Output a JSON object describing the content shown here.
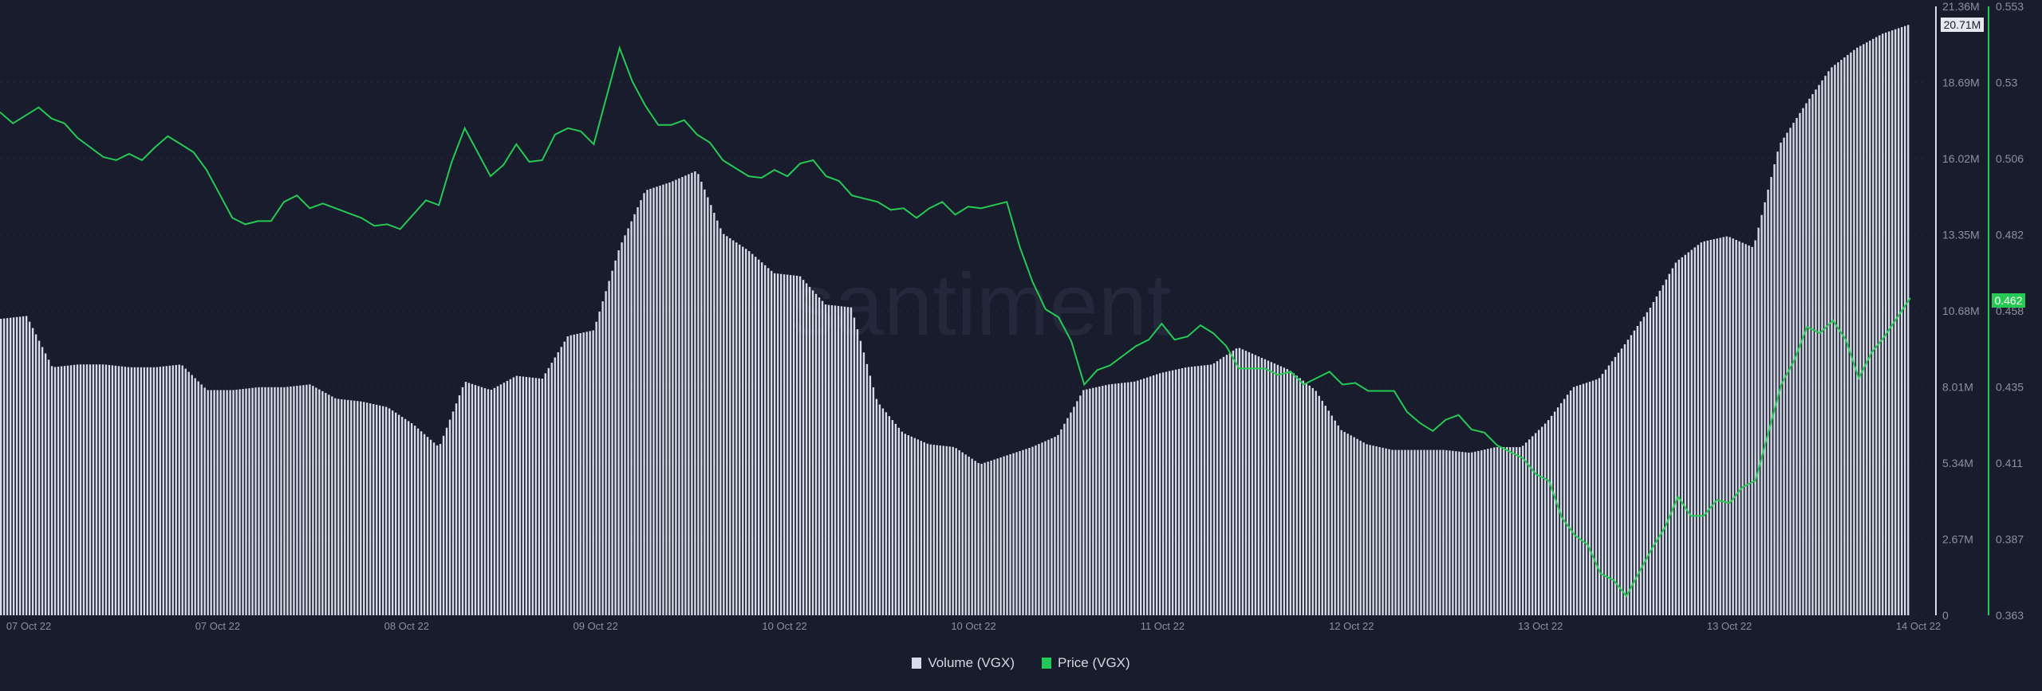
{
  "watermark": "santiment",
  "legend": [
    {
      "label": "Volume (VGX)",
      "color": "#d8dbe8"
    },
    {
      "label": "Price (VGX)",
      "color": "#26c953"
    }
  ],
  "chart_data": {
    "type": "bar+line",
    "x_tick_labels": [
      "07 Oct 22",
      "07 Oct 22",
      "08 Oct 22",
      "09 Oct 22",
      "10 Oct 22",
      "10 Oct 22",
      "11 Oct 22",
      "12 Oct 22",
      "13 Oct 22",
      "13 Oct 22",
      "14 Oct 22"
    ],
    "volume_axis": {
      "ticks": [
        "0",
        "2.67M",
        "5.34M",
        "8.01M",
        "10.68M",
        "13.35M",
        "16.02M",
        "18.69M",
        "21.36M"
      ],
      "range": [
        0,
        21.36
      ],
      "unit": "M",
      "current_label": "20.71M"
    },
    "price_axis": {
      "ticks": [
        "0.363",
        "0.387",
        "0.411",
        "0.435",
        "0.458",
        "0.482",
        "0.506",
        "0.53",
        "0.553"
      ],
      "range": [
        0.363,
        0.553
      ],
      "current_label": "0.462"
    },
    "grid": true,
    "legend_placement": "bottom-center",
    "series": [
      {
        "name": "Volume (VGX)",
        "type": "bar",
        "color": "#d8dbe8",
        "unit": "M",
        "values": [
          10.4,
          10.5,
          8.7,
          8.8,
          8.8,
          8.7,
          8.7,
          8.8,
          7.9,
          7.9,
          8.0,
          8.0,
          8.1,
          7.6,
          7.5,
          7.3,
          6.7,
          5.9,
          8.2,
          7.9,
          8.4,
          8.3,
          9.8,
          10.0,
          12.9,
          14.9,
          15.2,
          15.6,
          13.4,
          12.8,
          12.0,
          11.9,
          10.9,
          10.8,
          7.5,
          6.4,
          6.0,
          5.9,
          5.3,
          5.6,
          5.9,
          6.3,
          7.9,
          8.1,
          8.2,
          8.5,
          8.7,
          8.8,
          9.4,
          9.0,
          8.6,
          7.9,
          6.5,
          6.0,
          5.8,
          5.8,
          5.8,
          5.7,
          5.9,
          5.9,
          6.8,
          8.0,
          8.3,
          9.5,
          10.8,
          12.4,
          13.1,
          13.3,
          12.9,
          16.5,
          17.9,
          19.2,
          19.9,
          20.4,
          20.71
        ]
      },
      {
        "name": "Price (VGX)",
        "type": "line",
        "color": "#26c953",
        "values": [
          0.52,
          0.519,
          0.518,
          0.512,
          0.506,
          0.507,
          0.509,
          0.51,
          0.502,
          0.487,
          0.486,
          0.492,
          0.49,
          0.49,
          0.487,
          0.485,
          0.488,
          0.491,
          0.515,
          0.5,
          0.51,
          0.505,
          0.515,
          0.51,
          0.54,
          0.522,
          0.516,
          0.513,
          0.505,
          0.5,
          0.502,
          0.504,
          0.5,
          0.494,
          0.492,
          0.49,
          0.49,
          0.488,
          0.49,
          0.492,
          0.467,
          0.456,
          0.435,
          0.441,
          0.447,
          0.454,
          0.45,
          0.451,
          0.44,
          0.44,
          0.439,
          0.437,
          0.435,
          0.433,
          0.433,
          0.423,
          0.424,
          0.421,
          0.416,
          0.412,
          0.405,
          0.388,
          0.376,
          0.369,
          0.384,
          0.4,
          0.394,
          0.398,
          0.405,
          0.435,
          0.453,
          0.455,
          0.437,
          0.45,
          0.462
        ]
      }
    ]
  }
}
